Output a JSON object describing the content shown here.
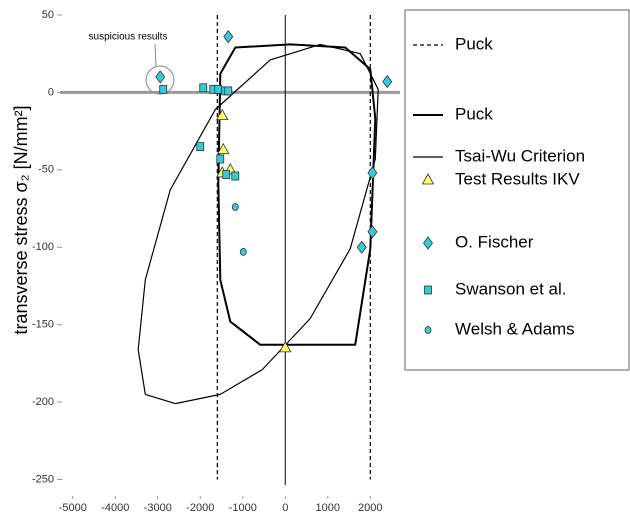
{
  "chart_data": {
    "type": "scatter",
    "y_label": "transverse stress σ₂ [N/mm²]",
    "annotation": "suspicious results",
    "xlim": [
      -5300,
      2700
    ],
    "ylim": [
      -260,
      50
    ],
    "xticks": [
      -5000,
      -4000,
      -3000,
      -2000,
      -1000,
      0,
      1000,
      2000
    ],
    "yticks": [
      50,
      0,
      -50,
      -100,
      -150,
      -200,
      -250
    ],
    "series": [
      {
        "name": "Puck",
        "style": "dashed",
        "color": "#000000",
        "x": [
          -1600,
          -1600,
          null,
          2000,
          2000
        ],
        "y": [
          50,
          -250,
          null,
          50,
          -250
        ]
      },
      {
        "name": "Puck",
        "style": "solid",
        "color": "#000000",
        "x": [
          -1576,
          -1529,
          -1176,
          118,
          1412,
          2000,
          2118,
          2000,
          1647,
          -588,
          -1294,
          -1529,
          -1576
        ],
        "y": [
          -59,
          12,
          29,
          31,
          29,
          15,
          -17,
          -101,
          -163,
          -163,
          -148,
          -121,
          -59
        ]
      },
      {
        "name": "Tsai-Wu Criterion",
        "style": "thin",
        "color": "#000000",
        "x": [
          -3294,
          -2588,
          -1529,
          -541,
          588,
          1529,
          2118,
          2188,
          1765,
          824,
          -353,
          -1647,
          -2706,
          -3294,
          -3459,
          -3294
        ],
        "y": [
          -195,
          -201,
          -195,
          -179,
          -146,
          -101,
          -43,
          2,
          25,
          31,
          21,
          -11,
          -63,
          -121,
          -166,
          -195
        ]
      },
      {
        "name": "Test Results IKV",
        "marker": "triangle",
        "color": "#ffff66",
        "x": [
          -1482,
          -1459,
          -1294,
          -1482,
          0
        ],
        "y": [
          -15,
          -37,
          -50,
          -52,
          -165
        ]
      },
      {
        "name": "O. Fischer",
        "marker": "diamond",
        "color": "#33ccdd",
        "x": [
          -1341,
          -2941,
          2400,
          2050,
          2050,
          1800
        ],
        "y": [
          36,
          10,
          7,
          -52,
          -90,
          -100
        ]
      },
      {
        "name": "Swanson et al.",
        "marker": "square",
        "color": "#33ccdd",
        "x": [
          -2871,
          -1929,
          -1694,
          -1576,
          -1412,
          -1341,
          -2000,
          -1529,
          -1388,
          -1176
        ],
        "y": [
          2,
          3,
          2,
          2,
          1,
          1,
          -35,
          -43,
          -53,
          -54
        ]
      },
      {
        "name": "Welsh & Adams",
        "marker": "circle",
        "color": "#33ccdd",
        "x": [
          -1176,
          -988
        ],
        "y": [
          -74,
          -103
        ]
      }
    ]
  }
}
